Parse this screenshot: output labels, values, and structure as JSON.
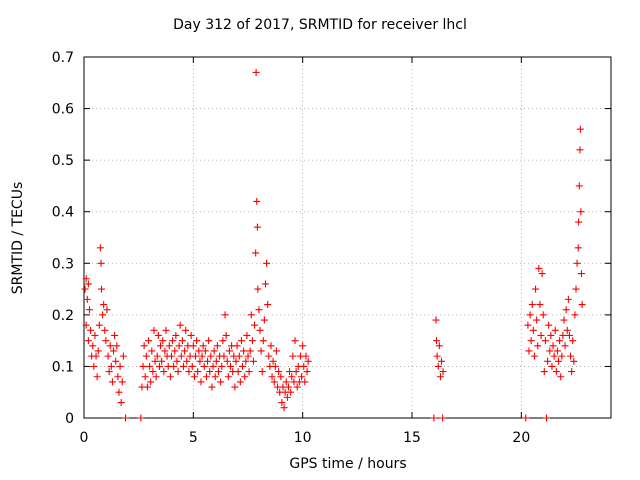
{
  "chart_data": {
    "type": "scatter",
    "title": "Day 312 of 2017, SRMTID for receiver lhcl",
    "xlabel": "GPS time / hours",
    "ylabel": "SRMTID / TECUs",
    "xlim": [
      0,
      24.1
    ],
    "ylim": [
      0,
      0.7
    ],
    "xticks": [
      0,
      5,
      10,
      15,
      20
    ],
    "xtick_labels": [
      "0",
      "5",
      "10",
      "15",
      "20"
    ],
    "yticks": [
      0,
      0.1,
      0.2,
      0.3,
      0.4,
      0.5,
      0.6,
      0.7
    ],
    "ytick_labels": [
      "0",
      "0.1",
      "0.2",
      "0.3",
      "0.4",
      "0.5",
      "0.6",
      "0.7"
    ],
    "grid": true,
    "marker": "plus",
    "marker_color": "#ff0000",
    "series": [
      {
        "name": "SRMTID",
        "points": [
          [
            0.05,
            0.25
          ],
          [
            0.1,
            0.27
          ],
          [
            0.15,
            0.23
          ],
          [
            0.2,
            0.26
          ],
          [
            0.25,
            0.21
          ],
          [
            0.1,
            0.18
          ],
          [
            0.2,
            0.15
          ],
          [
            0.3,
            0.17
          ],
          [
            0.35,
            0.12
          ],
          [
            0.4,
            0.14
          ],
          [
            0.45,
            0.1
          ],
          [
            0.5,
            0.16
          ],
          [
            0.55,
            0.12
          ],
          [
            0.6,
            0.08
          ],
          [
            0.65,
            0.13
          ],
          [
            0.7,
            0.18
          ],
          [
            0.75,
            0.33
          ],
          [
            0.78,
            0.3
          ],
          [
            0.8,
            0.25
          ],
          [
            0.85,
            0.2
          ],
          [
            0.9,
            0.22
          ],
          [
            0.95,
            0.17
          ],
          [
            1.0,
            0.15
          ],
          [
            1.05,
            0.21
          ],
          [
            1.1,
            0.12
          ],
          [
            1.15,
            0.09
          ],
          [
            1.2,
            0.14
          ],
          [
            1.25,
            0.1
          ],
          [
            1.3,
            0.07
          ],
          [
            1.35,
            0.13
          ],
          [
            1.4,
            0.16
          ],
          [
            1.45,
            0.11
          ],
          [
            1.5,
            0.14
          ],
          [
            1.55,
            0.08
          ],
          [
            1.6,
            0.05
          ],
          [
            1.65,
            0.1
          ],
          [
            1.7,
            0.03
          ],
          [
            1.75,
            0.07
          ],
          [
            1.8,
            0.12
          ],
          [
            1.9,
            0.0
          ],
          [
            2.6,
            0.0
          ],
          [
            2.65,
            0.06
          ],
          [
            2.7,
            0.1
          ],
          [
            2.75,
            0.14
          ],
          [
            2.8,
            0.08
          ],
          [
            2.85,
            0.12
          ],
          [
            2.9,
            0.06
          ],
          [
            2.95,
            0.15
          ],
          [
            3.0,
            0.1
          ],
          [
            3.05,
            0.07
          ],
          [
            3.1,
            0.13
          ],
          [
            3.15,
            0.09
          ],
          [
            3.2,
            0.17
          ],
          [
            3.25,
            0.11
          ],
          [
            3.3,
            0.08
          ],
          [
            3.35,
            0.12
          ],
          [
            3.4,
            0.16
          ],
          [
            3.45,
            0.1
          ],
          [
            3.5,
            0.14
          ],
          [
            3.55,
            0.11
          ],
          [
            3.6,
            0.15
          ],
          [
            3.65,
            0.09
          ],
          [
            3.7,
            0.13
          ],
          [
            3.75,
            0.17
          ],
          [
            3.8,
            0.12
          ],
          [
            3.85,
            0.1
          ],
          [
            3.9,
            0.14
          ],
          [
            3.95,
            0.08
          ],
          [
            4.0,
            0.12
          ],
          [
            4.05,
            0.15
          ],
          [
            4.1,
            0.1
          ],
          [
            4.15,
            0.13
          ],
          [
            4.2,
            0.16
          ],
          [
            4.25,
            0.11
          ],
          [
            4.3,
            0.09
          ],
          [
            4.35,
            0.14
          ],
          [
            4.4,
            0.18
          ],
          [
            4.45,
            0.12
          ],
          [
            4.5,
            0.15
          ],
          [
            4.55,
            0.1
          ],
          [
            4.6,
            0.13
          ],
          [
            4.65,
            0.17
          ],
          [
            4.7,
            0.11
          ],
          [
            4.75,
            0.14
          ],
          [
            4.8,
            0.09
          ],
          [
            4.85,
            0.12
          ],
          [
            4.9,
            0.16
          ],
          [
            4.95,
            0.1
          ],
          [
            5.0,
            0.14
          ],
          [
            5.05,
            0.08
          ],
          [
            5.1,
            0.12
          ],
          [
            5.15,
            0.15
          ],
          [
            5.2,
            0.09
          ],
          [
            5.25,
            0.13
          ],
          [
            5.3,
            0.11
          ],
          [
            5.35,
            0.07
          ],
          [
            5.4,
            0.12
          ],
          [
            5.45,
            0.14
          ],
          [
            5.5,
            0.1
          ],
          [
            5.55,
            0.13
          ],
          [
            5.6,
            0.08
          ],
          [
            5.65,
            0.11
          ],
          [
            5.7,
            0.15
          ],
          [
            5.75,
            0.09
          ],
          [
            5.8,
            0.12
          ],
          [
            5.85,
            0.06
          ],
          [
            5.9,
            0.1
          ],
          [
            5.95,
            0.13
          ],
          [
            6.0,
            0.08
          ],
          [
            6.05,
            0.11
          ],
          [
            6.1,
            0.14
          ],
          [
            6.15,
            0.09
          ],
          [
            6.2,
            0.12
          ],
          [
            6.25,
            0.07
          ],
          [
            6.3,
            0.1
          ],
          [
            6.35,
            0.15
          ],
          [
            6.4,
            0.12
          ],
          [
            6.45,
            0.2
          ],
          [
            6.5,
            0.16
          ],
          [
            6.55,
            0.11
          ],
          [
            6.6,
            0.08
          ],
          [
            6.65,
            0.13
          ],
          [
            6.7,
            0.1
          ],
          [
            6.75,
            0.14
          ],
          [
            6.8,
            0.09
          ],
          [
            6.85,
            0.12
          ],
          [
            6.9,
            0.06
          ],
          [
            6.95,
            0.11
          ],
          [
            7.0,
            0.14
          ],
          [
            7.05,
            0.09
          ],
          [
            7.1,
            0.12
          ],
          [
            7.15,
            0.07
          ],
          [
            7.2,
            0.15
          ],
          [
            7.25,
            0.1
          ],
          [
            7.3,
            0.13
          ],
          [
            7.35,
            0.08
          ],
          [
            7.4,
            0.11
          ],
          [
            7.45,
            0.16
          ],
          [
            7.5,
            0.12
          ],
          [
            7.55,
            0.09
          ],
          [
            7.6,
            0.13
          ],
          [
            7.65,
            0.2
          ],
          [
            7.7,
            0.15
          ],
          [
            7.75,
            0.11
          ],
          [
            7.8,
            0.18
          ],
          [
            7.85,
            0.32
          ],
          [
            7.87,
            0.67
          ],
          [
            7.9,
            0.42
          ],
          [
            7.93,
            0.37
          ],
          [
            7.95,
            0.25
          ],
          [
            8.0,
            0.21
          ],
          [
            8.05,
            0.17
          ],
          [
            8.1,
            0.13
          ],
          [
            8.15,
            0.09
          ],
          [
            8.2,
            0.15
          ],
          [
            8.25,
            0.19
          ],
          [
            8.3,
            0.26
          ],
          [
            8.35,
            0.3
          ],
          [
            8.4,
            0.22
          ],
          [
            8.45,
            0.12
          ],
          [
            8.5,
            0.1
          ],
          [
            8.55,
            0.14
          ],
          [
            8.6,
            0.08
          ],
          [
            8.65,
            0.11
          ],
          [
            8.7,
            0.07
          ],
          [
            8.75,
            0.1
          ],
          [
            8.8,
            0.13
          ],
          [
            8.85,
            0.06
          ],
          [
            8.9,
            0.09
          ],
          [
            8.95,
            0.05
          ],
          [
            9.0,
            0.08
          ],
          [
            9.05,
            0.03
          ],
          [
            9.1,
            0.06
          ],
          [
            9.15,
            0.02
          ],
          [
            9.2,
            0.05
          ],
          [
            9.25,
            0.07
          ],
          [
            9.3,
            0.04
          ],
          [
            9.35,
            0.06
          ],
          [
            9.4,
            0.09
          ],
          [
            9.45,
            0.05
          ],
          [
            9.5,
            0.08
          ],
          [
            9.55,
            0.12
          ],
          [
            9.6,
            0.07
          ],
          [
            9.65,
            0.15
          ],
          [
            9.7,
            0.09
          ],
          [
            9.75,
            0.06
          ],
          [
            9.8,
            0.1
          ],
          [
            9.85,
            0.07
          ],
          [
            9.9,
            0.12
          ],
          [
            9.95,
            0.08
          ],
          [
            10.0,
            0.14
          ],
          [
            10.05,
            0.1
          ],
          [
            10.1,
            0.07
          ],
          [
            10.15,
            0.12
          ],
          [
            10.2,
            0.09
          ],
          [
            10.25,
            0.11
          ],
          [
            16.0,
            0.0
          ],
          [
            16.1,
            0.19
          ],
          [
            16.12,
            0.15
          ],
          [
            16.15,
            0.12
          ],
          [
            16.2,
            0.1
          ],
          [
            16.25,
            0.14
          ],
          [
            16.3,
            0.08
          ],
          [
            16.35,
            0.11
          ],
          [
            16.4,
            0.0
          ],
          [
            16.42,
            0.09
          ],
          [
            20.2,
            0.0
          ],
          [
            20.3,
            0.18
          ],
          [
            20.35,
            0.13
          ],
          [
            20.4,
            0.2
          ],
          [
            20.45,
            0.15
          ],
          [
            20.5,
            0.22
          ],
          [
            20.55,
            0.17
          ],
          [
            20.6,
            0.12
          ],
          [
            20.65,
            0.25
          ],
          [
            20.7,
            0.19
          ],
          [
            20.75,
            0.14
          ],
          [
            20.8,
            0.29
          ],
          [
            20.85,
            0.22
          ],
          [
            20.9,
            0.16
          ],
          [
            20.95,
            0.28
          ],
          [
            21.0,
            0.2
          ],
          [
            21.05,
            0.09
          ],
          [
            21.1,
            0.15
          ],
          [
            21.15,
            0.0
          ],
          [
            21.2,
            0.11
          ],
          [
            21.25,
            0.18
          ],
          [
            21.3,
            0.13
          ],
          [
            21.35,
            0.16
          ],
          [
            21.4,
            0.1
          ],
          [
            21.45,
            0.14
          ],
          [
            21.5,
            0.12
          ],
          [
            21.55,
            0.17
          ],
          [
            21.6,
            0.09
          ],
          [
            21.65,
            0.13
          ],
          [
            21.7,
            0.11
          ],
          [
            21.75,
            0.15
          ],
          [
            21.8,
            0.08
          ],
          [
            21.85,
            0.12
          ],
          [
            21.9,
            0.16
          ],
          [
            21.95,
            0.19
          ],
          [
            22.0,
            0.14
          ],
          [
            22.05,
            0.21
          ],
          [
            22.1,
            0.17
          ],
          [
            22.15,
            0.23
          ],
          [
            22.2,
            0.16
          ],
          [
            22.25,
            0.12
          ],
          [
            22.3,
            0.09
          ],
          [
            22.35,
            0.15
          ],
          [
            22.4,
            0.11
          ],
          [
            22.45,
            0.2
          ],
          [
            22.5,
            0.25
          ],
          [
            22.55,
            0.3
          ],
          [
            22.6,
            0.33
          ],
          [
            22.62,
            0.38
          ],
          [
            22.65,
            0.45
          ],
          [
            22.68,
            0.52
          ],
          [
            22.7,
            0.56
          ],
          [
            22.72,
            0.4
          ],
          [
            22.75,
            0.28
          ],
          [
            22.78,
            0.22
          ]
        ]
      }
    ]
  }
}
